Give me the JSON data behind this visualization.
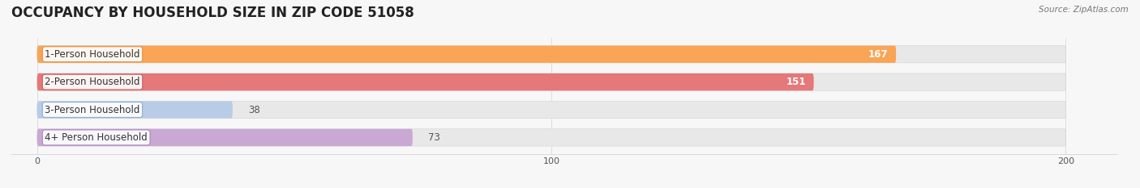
{
  "title": "OCCUPANCY BY HOUSEHOLD SIZE IN ZIP CODE 51058",
  "source": "Source: ZipAtlas.com",
  "categories": [
    "1-Person Household",
    "2-Person Household",
    "3-Person Household",
    "4+ Person Household"
  ],
  "values": [
    167,
    151,
    38,
    73
  ],
  "bar_colors": [
    "#F9A555",
    "#E57878",
    "#B8CCE8",
    "#C9A8D4"
  ],
  "label_bg_colors": [
    "#F9A555",
    "#E57878",
    "#B8CCE8",
    "#C9A8D4"
  ],
  "label_border_colors": [
    "#E8883A",
    "#CC5555",
    "#8AAACE",
    "#A880C0"
  ],
  "xlim": [
    -5,
    210
  ],
  "xticks": [
    0,
    100,
    200
  ],
  "bg_color": "#f7f7f7",
  "bar_bg_color": "#e8e8e8",
  "bar_bg_border": "#d8d8d8",
  "title_fontsize": 12,
  "label_fontsize": 8.5,
  "value_fontsize": 8.5,
  "bar_height": 0.62,
  "max_val": 200
}
